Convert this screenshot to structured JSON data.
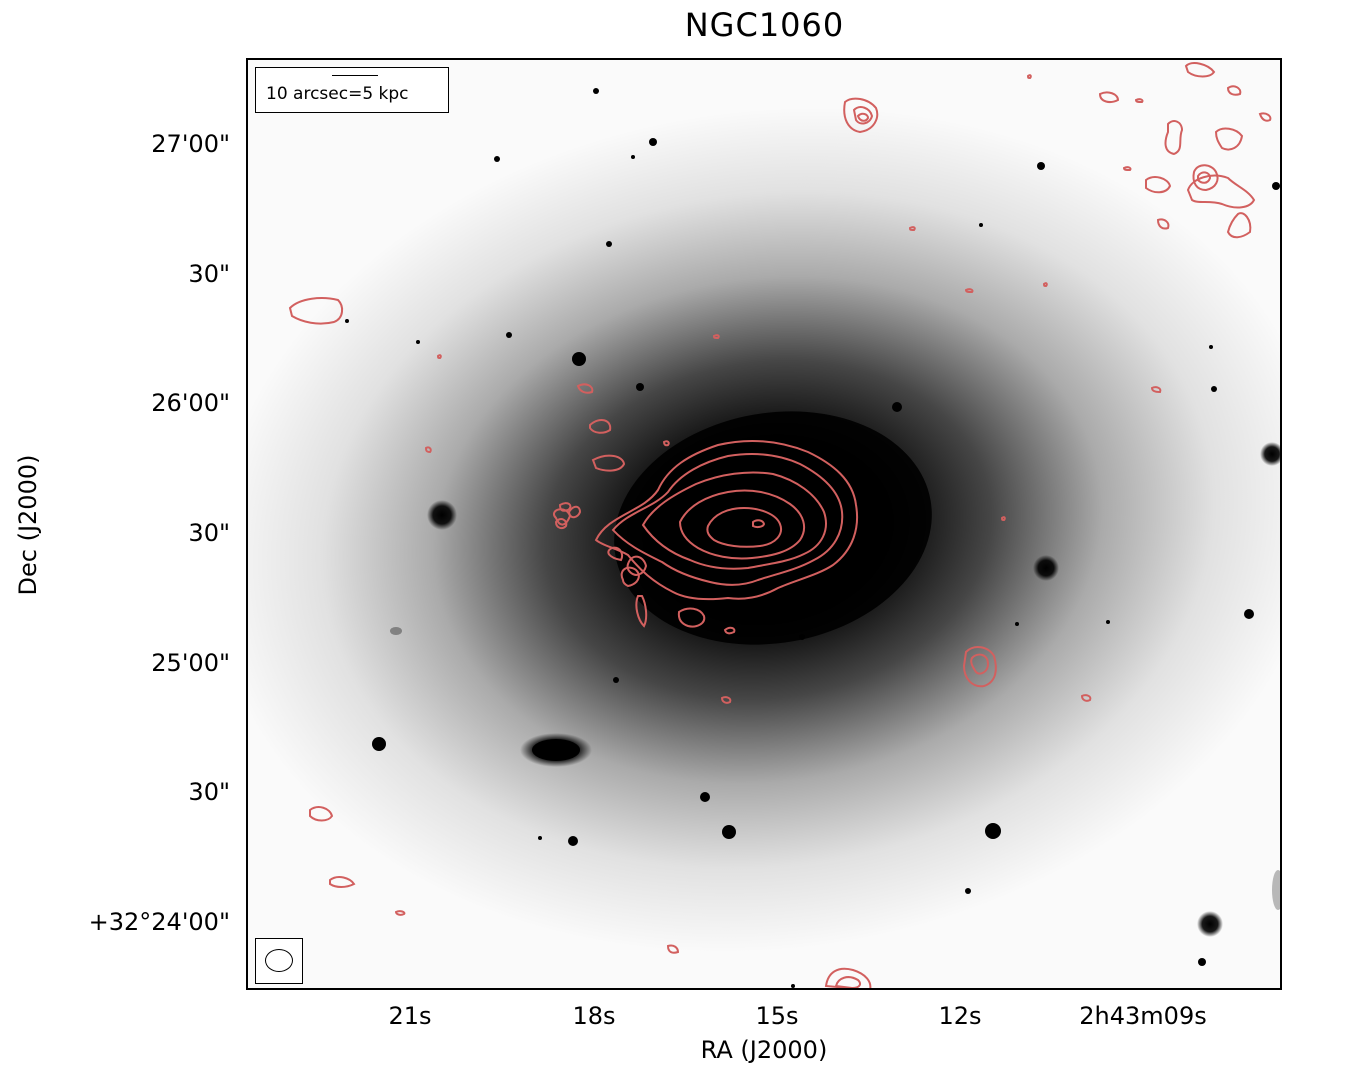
{
  "title": "NGC1060",
  "axes": {
    "xlabel": "RA (J2000)",
    "ylabel": "Dec (J2000)",
    "xticks": [
      "21s",
      "18s",
      "15s",
      "12s",
      "2h43m09s"
    ],
    "yticks": [
      "27'00\"",
      "30\"",
      "26'00\"",
      "30\"",
      "25'00\"",
      "30\"",
      "+32°24'00\""
    ]
  },
  "scale_bar_label": "10 arcsec=5 kpc",
  "contour_color": "#d2605f",
  "image": {
    "background": "#fafafa",
    "source": "grayscale optical image of the galaxy with radio contours overlaid"
  }
}
